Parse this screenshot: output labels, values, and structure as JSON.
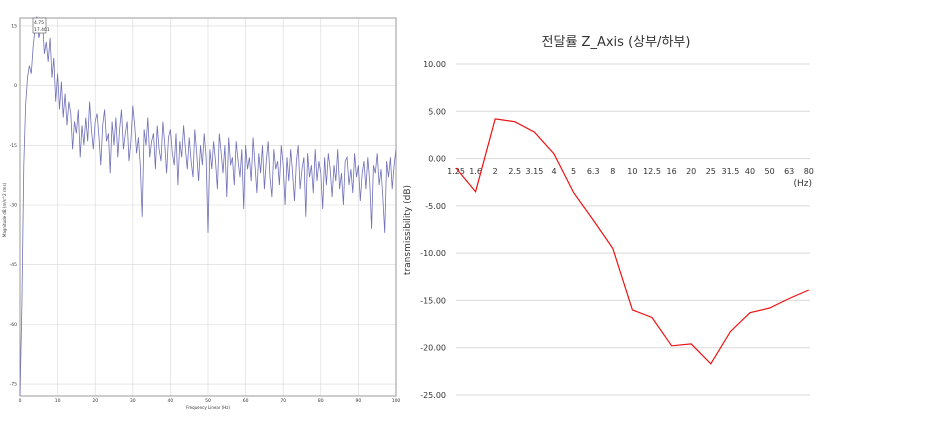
{
  "chart_data": [
    {
      "type": "line",
      "title": "",
      "xlabel": "Frequency Linear (Hz)",
      "ylabel": "Magnitude dB (m/s^2 rms)",
      "xlim": [
        0,
        100
      ],
      "ylim": [
        -78,
        17
      ],
      "xticks": [
        "0",
        "10",
        "20",
        "30",
        "40",
        "50",
        "60",
        "70",
        "80",
        "90",
        "100"
      ],
      "yticks": [
        "15",
        "0",
        "-15",
        "-30",
        "-45",
        "-60",
        "-75"
      ],
      "grid": true,
      "cursor_label": [
        "4.75",
        "17.401"
      ],
      "series": [
        {
          "color": "#7070b8",
          "x": [
            0,
            0.5,
            1,
            1.5,
            2,
            2.5,
            3,
            3.5,
            4,
            4.5,
            5,
            5.5,
            6,
            6.5,
            7,
            7.5,
            8,
            8.5,
            9,
            9.5,
            10,
            10.5,
            11,
            11.5,
            12,
            12.5,
            13,
            13.5,
            14,
            14.5,
            15,
            15.5,
            16,
            16.5,
            17,
            17.5,
            18,
            18.5,
            19,
            19.5,
            20,
            20.5,
            21,
            21.5,
            22,
            22.5,
            23,
            23.5,
            24,
            24.5,
            25,
            25.5,
            26,
            26.5,
            27,
            27.5,
            28,
            28.5,
            29,
            29.5,
            30,
            30.5,
            31,
            31.5,
            32,
            32.5,
            33,
            33.5,
            34,
            34.5,
            35,
            35.5,
            36,
            36.5,
            37,
            37.5,
            38,
            38.5,
            39,
            39.5,
            40,
            40.5,
            41,
            41.5,
            42,
            42.5,
            43,
            43.5,
            44,
            44.5,
            45,
            45.5,
            46,
            46.5,
            47,
            47.5,
            48,
            48.5,
            49,
            49.5,
            50,
            50.5,
            51,
            51.5,
            52,
            52.5,
            53,
            53.5,
            54,
            54.5,
            55,
            55.5,
            56,
            56.5,
            57,
            57.5,
            58,
            58.5,
            59,
            59.5,
            60,
            60.5,
            61,
            61.5,
            62,
            62.5,
            63,
            63.5,
            64,
            64.5,
            65,
            65.5,
            66,
            66.5,
            67,
            67.5,
            68,
            68.5,
            69,
            69.5,
            70,
            70.5,
            71,
            71.5,
            72,
            72.5,
            73,
            73.5,
            74,
            74.5,
            75,
            75.5,
            76,
            76.5,
            77,
            77.5,
            78,
            78.5,
            79,
            79.5,
            80,
            80.5,
            81,
            81.5,
            82,
            82.5,
            83,
            83.5,
            84,
            84.5,
            85,
            85.5,
            86,
            86.5,
            87,
            87.5,
            88,
            88.5,
            89,
            89.5,
            90,
            90.5,
            91,
            91.5,
            92,
            92.5,
            93,
            93.5,
            94,
            94.5,
            95,
            95.5,
            96,
            96.5,
            97,
            97.5,
            98,
            98.5,
            99,
            99.5,
            100
          ],
          "y": [
            -78,
            -55,
            -20,
            -5,
            2,
            5,
            3,
            10,
            14,
            17.4,
            12,
            14,
            16,
            8,
            11,
            6,
            12,
            2,
            7,
            -4,
            3,
            -6,
            1,
            -8,
            -2,
            -10,
            -4,
            -7,
            -16,
            -9,
            -12,
            -6,
            -18,
            -10,
            -15,
            -8,
            -14,
            -4,
            -11,
            -16,
            -9,
            -7,
            -13,
            -20,
            -10,
            -6,
            -14,
            -12,
            -22,
            -9,
            -15,
            -8,
            -18,
            -11,
            -6,
            -16,
            -12,
            -9,
            -19,
            -14,
            -5,
            -10,
            -17,
            -13,
            -20,
            -33,
            -11,
            -15,
            -8,
            -18,
            -14,
            -12,
            -21,
            -10,
            -16,
            -19,
            -9,
            -15,
            -22,
            -13,
            -11,
            -17,
            -20,
            -12,
            -25,
            -14,
            -18,
            -10,
            -16,
            -21,
            -13,
            -19,
            -23,
            -11,
            -17,
            -24,
            -15,
            -20,
            -12,
            -18,
            -37,
            -16,
            -21,
            -14,
            -19,
            -26,
            -12,
            -17,
            -22,
            -15,
            -28,
            -13,
            -20,
            -18,
            -25,
            -14,
            -19,
            -23,
            -16,
            -31,
            -15,
            -21,
            -18,
            -24,
            -13,
            -20,
            -27,
            -17,
            -22,
            -15,
            -26,
            -19,
            -14,
            -23,
            -28,
            -16,
            -21,
            -19,
            -25,
            -15,
            -20,
            -30,
            -18,
            -24,
            -16,
            -22,
            -29,
            -19,
            -15,
            -26,
            -21,
            -18,
            -33,
            -17,
            -23,
            -20,
            -27,
            -16,
            -24,
            -19,
            -22,
            -31,
            -18,
            -25,
            -17,
            -21,
            -28,
            -20,
            -24,
            -16,
            -26,
            -22,
            -30,
            -19,
            -18,
            -25,
            -21,
            -27,
            -17,
            -23,
            -20,
            -29,
            -22,
            -19,
            -26,
            -18,
            -24,
            -36,
            -20,
            -22,
            -17,
            -25,
            -21,
            -28,
            -37,
            -19,
            -23,
            -18,
            -26,
            -20,
            -16
          ]
        }
      ]
    },
    {
      "type": "line",
      "title": "전달률 Z_Axis (상부/하부)",
      "xlabel": "(Hz)",
      "ylabel": "transmissibility (dB)",
      "categories": [
        "1.25",
        "1.6",
        "2",
        "2.5",
        "3.15",
        "4",
        "5",
        "6.3",
        "8",
        "10",
        "12.5",
        "16",
        "20",
        "25",
        "31.5",
        "40",
        "50",
        "63",
        "80"
      ],
      "yticks": [
        "10.00",
        "5.00",
        "0.00",
        "-5.00",
        "-10.00",
        "-15.00",
        "-20.00",
        "-25.00"
      ],
      "ylim": [
        -25,
        10
      ],
      "grid": true,
      "series": [
        {
          "color": "#ee1111",
          "values": [
            -1.0,
            -3.5,
            4.2,
            3.9,
            2.8,
            0.5,
            -3.6,
            -6.5,
            -9.5,
            -16.0,
            -16.8,
            -19.8,
            -19.6,
            -21.7,
            -18.3,
            -16.3,
            -15.8,
            -14.8,
            -13.9
          ]
        }
      ]
    }
  ]
}
